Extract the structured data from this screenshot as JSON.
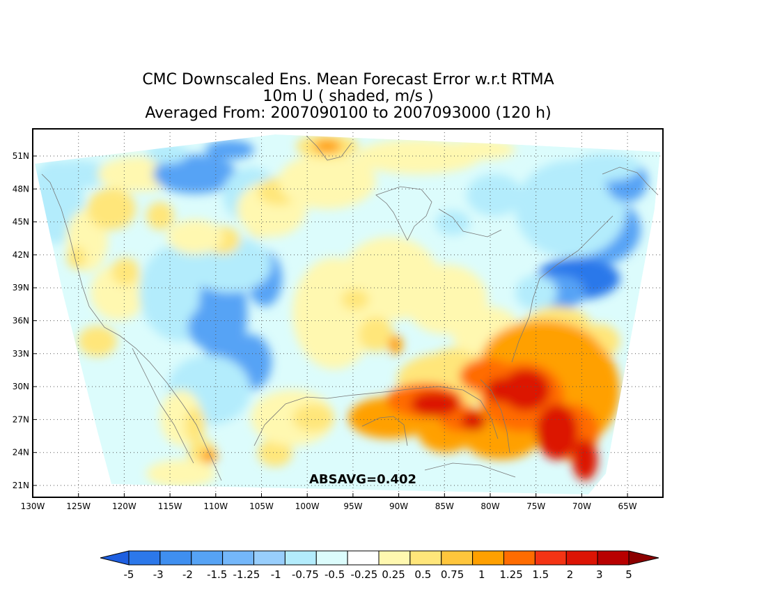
{
  "title": {
    "line1": "CMC Downscaled Ens. Mean Forecast Error w.r.t RTMA",
    "line2": "10m U ( shaded, m/s )",
    "line3": "Averaged From: 2007090100 to 2007093000 (120 h)"
  },
  "annotation": "ABSAVG=0.402",
  "lat_labels": [
    "51N",
    "48N",
    "45N",
    "42N",
    "39N",
    "36N",
    "33N",
    "30N",
    "27N",
    "24N",
    "21N"
  ],
  "lon_labels": [
    "130W",
    "125W",
    "120W",
    "115W",
    "110W",
    "105W",
    "100W",
    "95W",
    "90W",
    "85W",
    "80W",
    "75W",
    "70W",
    "65W"
  ],
  "colorbar": {
    "labels": [
      "-5",
      "-3",
      "-2",
      "-1.5",
      "-1.25",
      "-1",
      "-0.75",
      "-0.5",
      "-0.25",
      "0.25",
      "0.5",
      "0.75",
      "1",
      "1.25",
      "1.5",
      "2",
      "3",
      "5"
    ],
    "colors": [
      "#1e5fe0",
      "#2c78ea",
      "#3f8ff0",
      "#56a3f5",
      "#74b7fa",
      "#98cefc",
      "#b3ecfc",
      "#dcfcfc",
      "#ffffff",
      "#fff8b0",
      "#ffe67a",
      "#ffc63c",
      "#ffa000",
      "#ff6c00",
      "#f43414",
      "#dc1404",
      "#b80000",
      "#8c0000"
    ]
  },
  "map_colors": {
    "lightblue": "#b3ecfc",
    "blue": "#56a3f5",
    "darkblue": "#2c78ea",
    "lightyellow": "#fff8b0",
    "yellow": "#ffe67a",
    "orange": "#ffa000",
    "darkorange": "#ff6c00",
    "red": "#dc1404"
  }
}
